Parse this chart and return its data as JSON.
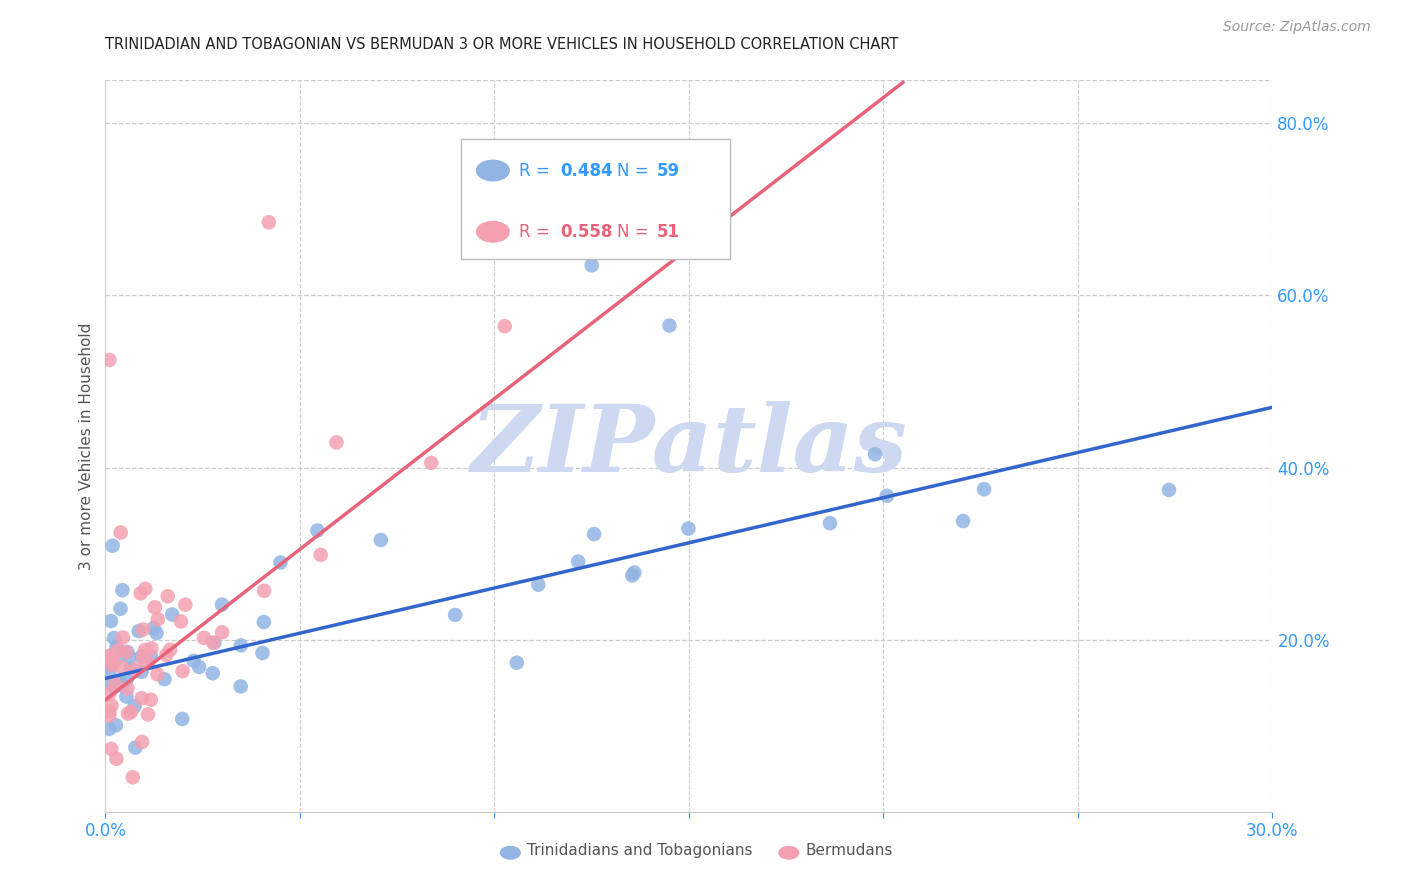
{
  "title": "TRINIDADIAN AND TOBAGONIAN VS BERMUDAN 3 OR MORE VEHICLES IN HOUSEHOLD CORRELATION CHART",
  "source_text": "Source: ZipAtlas.com",
  "ylabel": "3 or more Vehicles in Household",
  "xlim": [
    0.0,
    0.3
  ],
  "ylim": [
    0.0,
    0.85
  ],
  "yticks_right": [
    0.2,
    0.4,
    0.6,
    0.8
  ],
  "yticklabels_right": [
    "20.0%",
    "40.0%",
    "60.0%",
    "80.0%"
  ],
  "legend1_label": "Trinidadians and Tobagonians",
  "legend2_label": "Bermudans",
  "legend_R1": "R = 0.484",
  "legend_N1": "N = 59",
  "legend_R2": "R = 0.558",
  "legend_N2": "N = 51",
  "blue_color": "#92b4e3",
  "pink_color": "#f4a0b0",
  "blue_line_color": "#3366cc",
  "pink_line_color": "#e8637a",
  "watermark": "ZIPatlas",
  "watermark_color": "#ccd9f0",
  "grid_color": "#cccccc",
  "background_color": "#ffffff",
  "axis_color": "#3399ff",
  "ylabel_color": "#555555",
  "title_color": "#222222",
  "source_color": "#999999",
  "bottom_label_color": "#555555"
}
